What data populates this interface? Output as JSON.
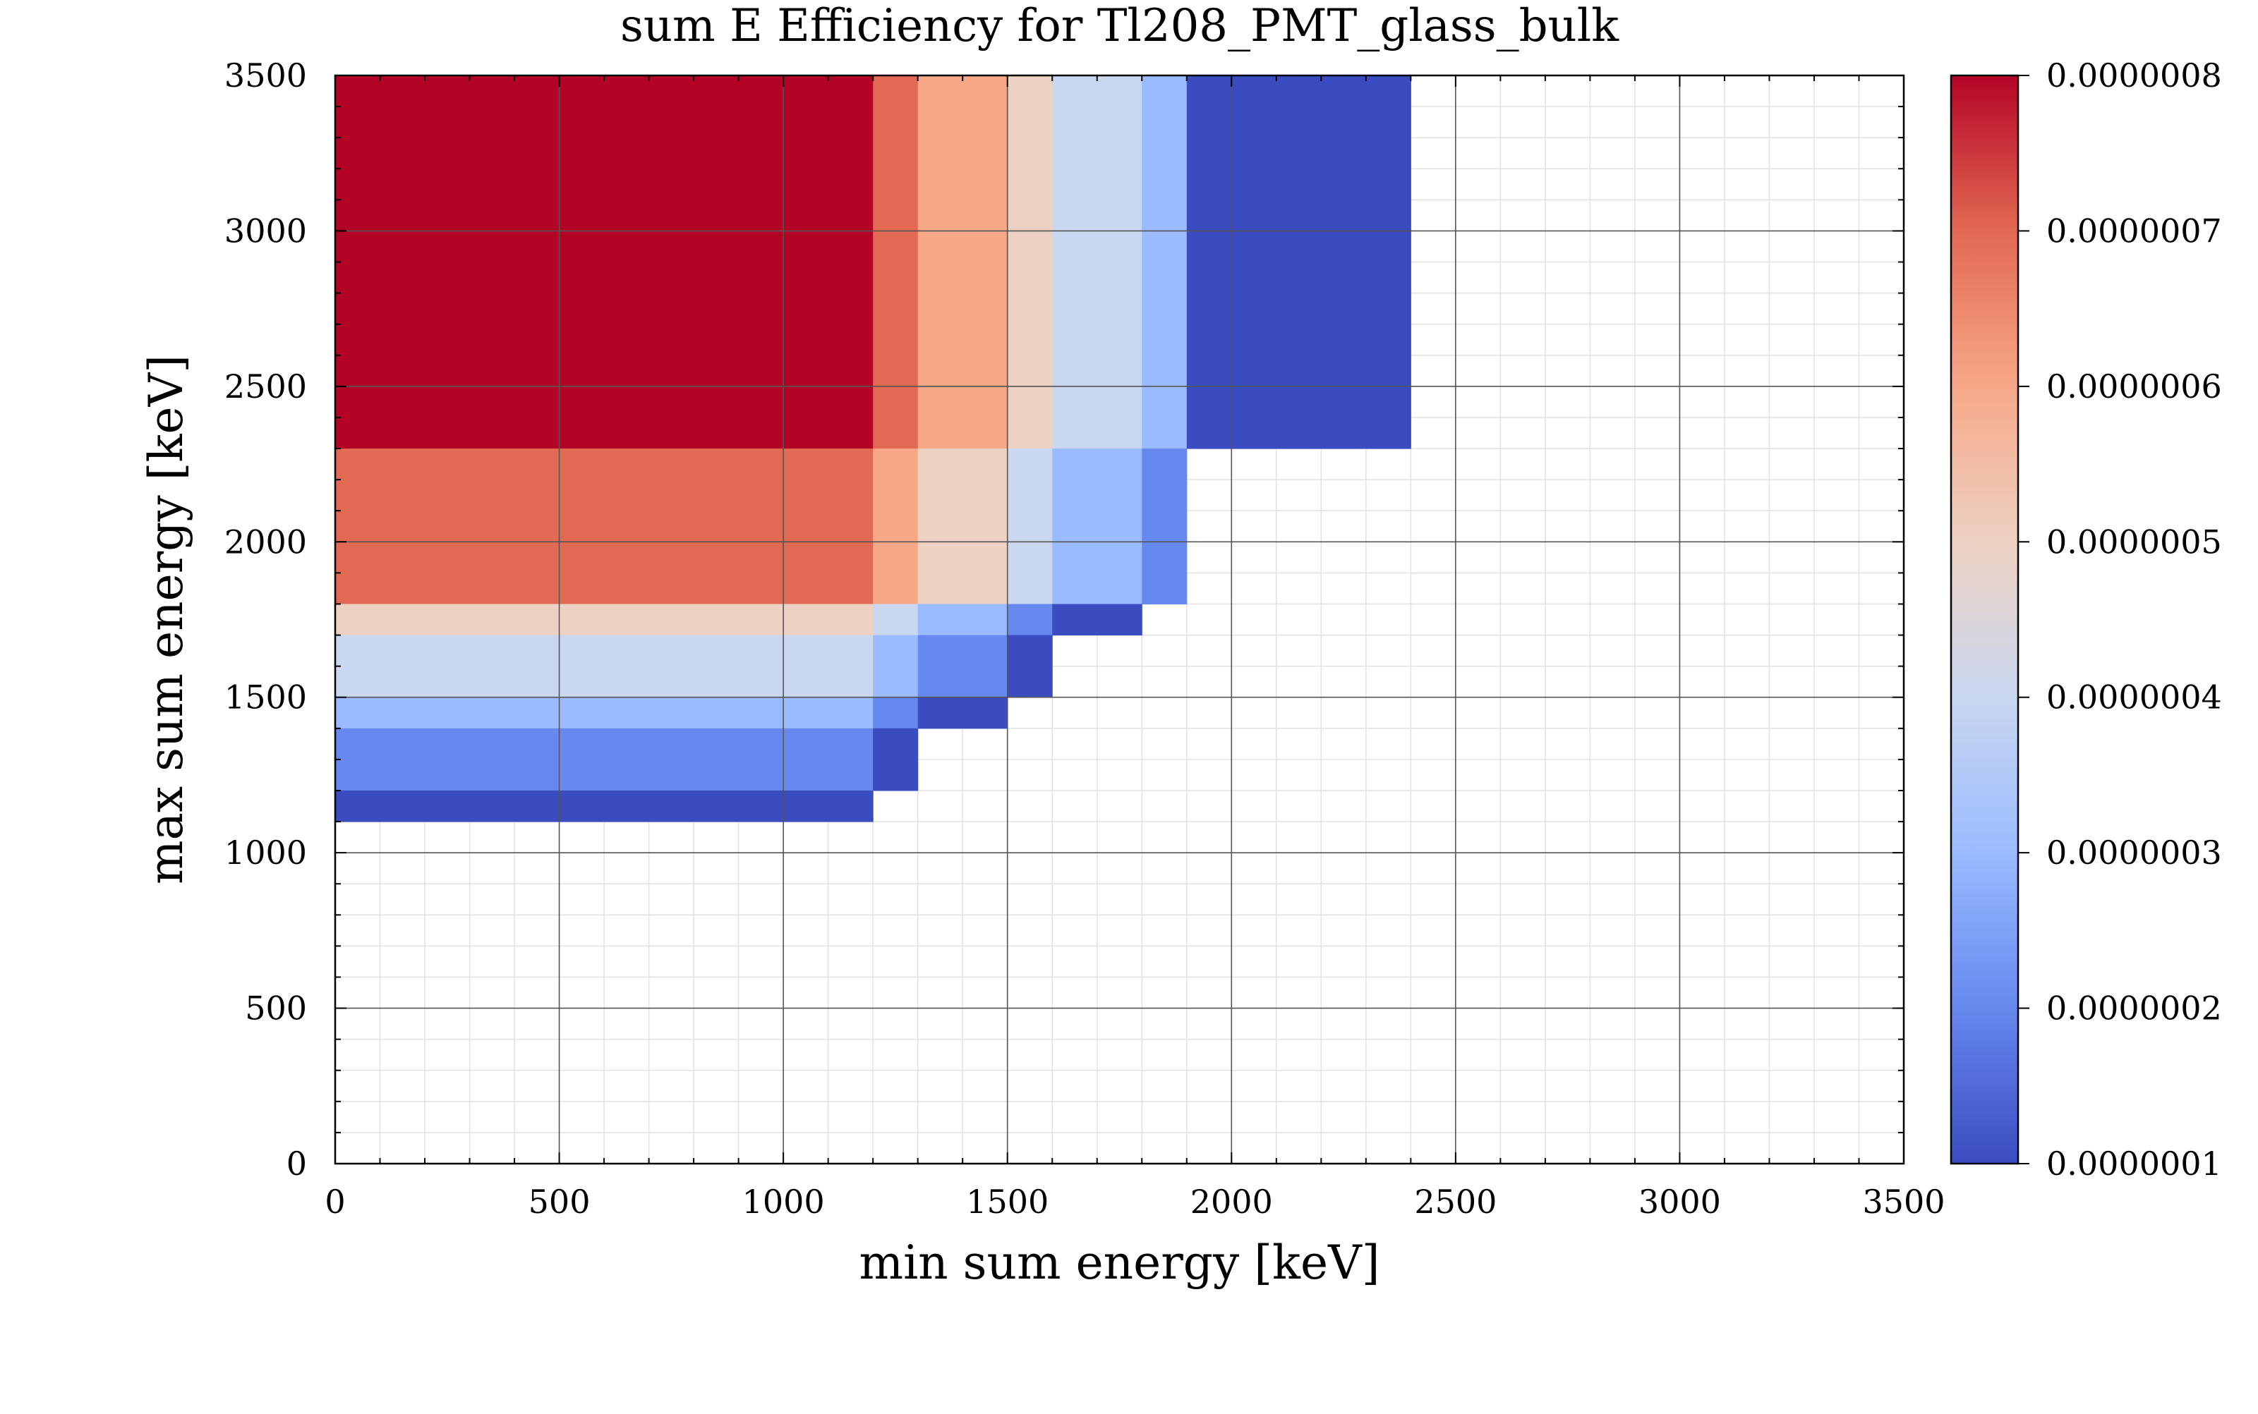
{
  "chart_data": {
    "type": "heatmap",
    "title": "sum E Efficiency for Tl208_PMT_glass_bulk",
    "xlabel": "min sum energy [keV]",
    "ylabel": "max sum energy [keV]",
    "xlim": [
      0,
      3500
    ],
    "ylim": [
      0,
      3500
    ],
    "x_ticks": [
      "0",
      "500",
      "1000",
      "1500",
      "2000",
      "2500",
      "3000",
      "3500"
    ],
    "y_ticks": [
      "0",
      "500",
      "1000",
      "1500",
      "2000",
      "2500",
      "3000",
      "3500"
    ],
    "x_tick_values": [
      0,
      500,
      1000,
      1500,
      2000,
      2500,
      3000,
      3500
    ],
    "y_tick_values": [
      0,
      500,
      1000,
      1500,
      2000,
      2500,
      3000,
      3500
    ],
    "grid": true,
    "colormap": "coolwarm",
    "colorbar": {
      "min": 1e-07,
      "max": 8e-07,
      "tick_labels": [
        "0.0000008",
        "0.0000007",
        "0.0000006",
        "0.0000005",
        "0.0000004",
        "0.0000003",
        "0.0000002",
        "0.0000001"
      ],
      "tick_values": [
        8e-07,
        7e-07,
        6e-07,
        5e-07,
        4e-07,
        3e-07,
        2e-07,
        1e-07
      ],
      "stops": [
        "#3b4cc0",
        "#6788ee",
        "#9abbff",
        "#c9d7f0",
        "#edd1c2",
        "#f7a889",
        "#e26952",
        "#b40426"
      ]
    },
    "cells": [
      {
        "x0": 0,
        "x1": 1200,
        "y0": 2300,
        "y1": 3500,
        "value": 8e-07
      },
      {
        "x0": 1200,
        "x1": 1300,
        "y0": 2300,
        "y1": 3500,
        "value": 7e-07
      },
      {
        "x0": 1300,
        "x1": 1500,
        "y0": 2300,
        "y1": 3500,
        "value": 6e-07
      },
      {
        "x0": 1500,
        "x1": 1600,
        "y0": 2300,
        "y1": 3500,
        "value": 5e-07
      },
      {
        "x0": 1600,
        "x1": 1800,
        "y0": 2300,
        "y1": 3500,
        "value": 4e-07
      },
      {
        "x0": 1800,
        "x1": 1900,
        "y0": 2300,
        "y1": 3500,
        "value": 3e-07
      },
      {
        "x0": 1900,
        "x1": 2400,
        "y0": 2300,
        "y1": 3500,
        "value": 1e-07
      },
      {
        "x0": 0,
        "x1": 1200,
        "y0": 1800,
        "y1": 2300,
        "value": 7e-07
      },
      {
        "x0": 1200,
        "x1": 1300,
        "y0": 1800,
        "y1": 2300,
        "value": 6e-07
      },
      {
        "x0": 1300,
        "x1": 1500,
        "y0": 1800,
        "y1": 2300,
        "value": 5e-07
      },
      {
        "x0": 1500,
        "x1": 1600,
        "y0": 1800,
        "y1": 2300,
        "value": 4e-07
      },
      {
        "x0": 1600,
        "x1": 1800,
        "y0": 1800,
        "y1": 2300,
        "value": 3e-07
      },
      {
        "x0": 1800,
        "x1": 1900,
        "y0": 1800,
        "y1": 2300,
        "value": 2e-07
      },
      {
        "x0": 0,
        "x1": 1200,
        "y0": 1700,
        "y1": 1800,
        "value": 5e-07
      },
      {
        "x0": 1200,
        "x1": 1300,
        "y0": 1700,
        "y1": 1800,
        "value": 4e-07
      },
      {
        "x0": 1300,
        "x1": 1500,
        "y0": 1700,
        "y1": 1800,
        "value": 3e-07
      },
      {
        "x0": 1500,
        "x1": 1600,
        "y0": 1700,
        "y1": 1800,
        "value": 2e-07
      },
      {
        "x0": 1600,
        "x1": 1800,
        "y0": 1700,
        "y1": 1800,
        "value": 1e-07
      },
      {
        "x0": 0,
        "x1": 1200,
        "y0": 1500,
        "y1": 1700,
        "value": 4e-07
      },
      {
        "x0": 1200,
        "x1": 1300,
        "y0": 1500,
        "y1": 1700,
        "value": 3e-07
      },
      {
        "x0": 1300,
        "x1": 1500,
        "y0": 1500,
        "y1": 1700,
        "value": 2e-07
      },
      {
        "x0": 1500,
        "x1": 1600,
        "y0": 1500,
        "y1": 1700,
        "value": 1e-07
      },
      {
        "x0": 0,
        "x1": 1200,
        "y0": 1400,
        "y1": 1500,
        "value": 3e-07
      },
      {
        "x0": 1200,
        "x1": 1300,
        "y0": 1400,
        "y1": 1500,
        "value": 2e-07
      },
      {
        "x0": 1300,
        "x1": 1500,
        "y0": 1400,
        "y1": 1500,
        "value": 1e-07
      },
      {
        "x0": 0,
        "x1": 1200,
        "y0": 1200,
        "y1": 1400,
        "value": 2e-07
      },
      {
        "x0": 1200,
        "x1": 1300,
        "y0": 1200,
        "y1": 1400,
        "value": 1e-07
      },
      {
        "x0": 0,
        "x1": 1200,
        "y0": 1100,
        "y1": 1200,
        "value": 1e-07
      }
    ]
  }
}
